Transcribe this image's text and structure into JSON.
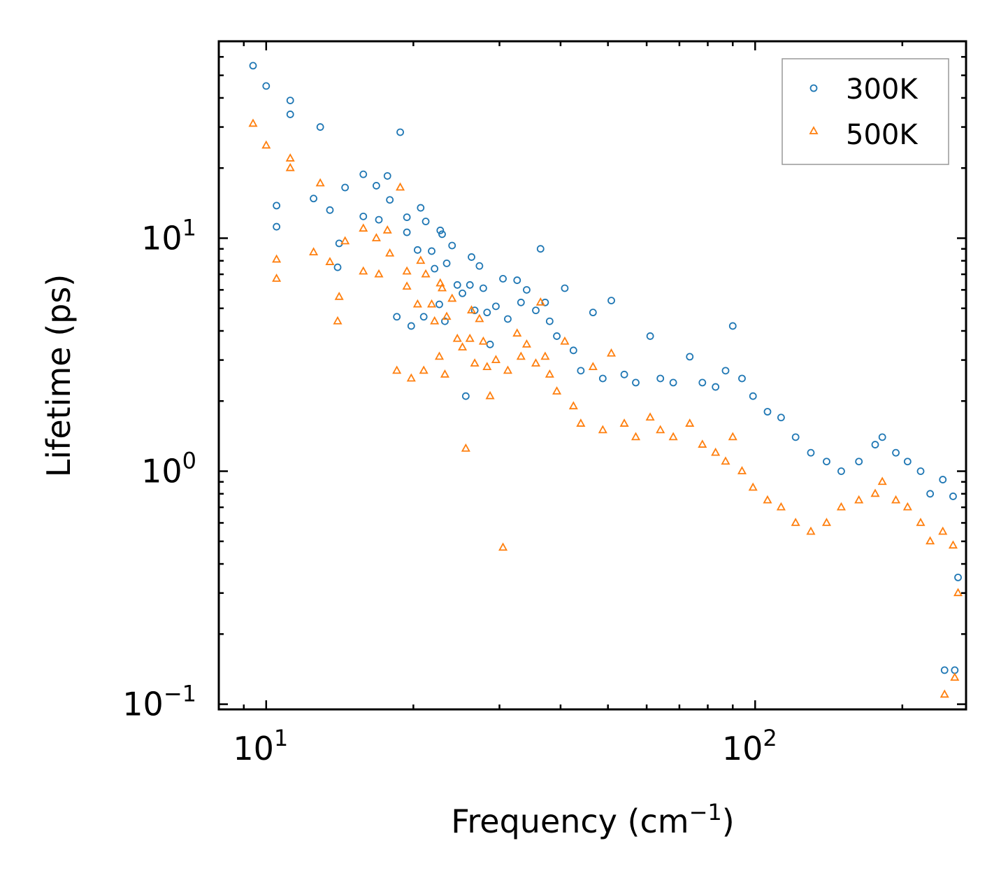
{
  "chart_data": {
    "type": "scatter",
    "title": "",
    "xlabel": "Frequency (cm",
    "xlabel_sup": "−1",
    "xlabel_end": ")",
    "ylabel": "Lifetime (ps)",
    "xscale": "log",
    "yscale": "log",
    "xlim": [
      8,
      270
    ],
    "ylim": [
      0.095,
      70
    ],
    "xticks": [
      {
        "base": "10",
        "exp": "1",
        "value": 10
      },
      {
        "base": "10",
        "exp": "2",
        "value": 100
      }
    ],
    "yticks": [
      {
        "base": "10",
        "exp": "−1",
        "value": 0.1
      },
      {
        "base": "10",
        "exp": "0",
        "value": 1
      },
      {
        "base": "10",
        "exp": "1",
        "value": 10
      }
    ],
    "legend_position": "top-right",
    "series": [
      {
        "name": "300K",
        "marker": "circle",
        "color": "#1f77b4",
        "points": [
          [
            9.4,
            55
          ],
          [
            10,
            45
          ],
          [
            11.2,
            39
          ],
          [
            11.2,
            34
          ],
          [
            12.9,
            30
          ],
          [
            10.5,
            13.8
          ],
          [
            10.5,
            11.2
          ],
          [
            12.5,
            14.8
          ],
          [
            13.5,
            13.2
          ],
          [
            14.1,
            9.5
          ],
          [
            14,
            7.5
          ],
          [
            14.5,
            16.5
          ],
          [
            15.8,
            18.8
          ],
          [
            15.8,
            12.4
          ],
          [
            16.8,
            16.8
          ],
          [
            17,
            12
          ],
          [
            17.7,
            18.5
          ],
          [
            17.9,
            14.6
          ],
          [
            18.8,
            28.5
          ],
          [
            18.5,
            4.6
          ],
          [
            19.4,
            12.3
          ],
          [
            19.4,
            10.6
          ],
          [
            19.8,
            4.2
          ],
          [
            20.7,
            13.5
          ],
          [
            20.4,
            8.9
          ],
          [
            21,
            4.6
          ],
          [
            21.2,
            11.8
          ],
          [
            21.8,
            8.8
          ],
          [
            22.1,
            7.4
          ],
          [
            22.7,
            10.8
          ],
          [
            22.9,
            10.4
          ],
          [
            22.6,
            5.2
          ],
          [
            23.2,
            4.4
          ],
          [
            23.4,
            7.8
          ],
          [
            24,
            9.3
          ],
          [
            24.6,
            6.3
          ],
          [
            25.2,
            5.8
          ],
          [
            25.6,
            2.1
          ],
          [
            26.1,
            6.3
          ],
          [
            26.3,
            8.3
          ],
          [
            26.7,
            4.9
          ],
          [
            27.3,
            7.6
          ],
          [
            27.8,
            6.1
          ],
          [
            28.3,
            4.8
          ],
          [
            28.7,
            3.5
          ],
          [
            29.5,
            5.1
          ],
          [
            30.5,
            6.7
          ],
          [
            31.2,
            4.5
          ],
          [
            32.6,
            6.6
          ],
          [
            33.2,
            5.3
          ],
          [
            34.1,
            6.0
          ],
          [
            35.6,
            4.9
          ],
          [
            36.4,
            9.0
          ],
          [
            37.2,
            5.3
          ],
          [
            38.0,
            4.4
          ],
          [
            39.3,
            3.8
          ],
          [
            40.8,
            6.1
          ],
          [
            42.5,
            3.3
          ],
          [
            44.0,
            2.7
          ],
          [
            46.6,
            4.8
          ],
          [
            48.8,
            2.5
          ],
          [
            50.8,
            5.4
          ],
          [
            54.0,
            2.6
          ],
          [
            57.0,
            2.4
          ],
          [
            61.0,
            3.8
          ],
          [
            64.0,
            2.5
          ],
          [
            68.0,
            2.4
          ],
          [
            73.5,
            3.1
          ],
          [
            78.0,
            2.4
          ],
          [
            83.0,
            2.3
          ],
          [
            87.0,
            2.7
          ],
          [
            90.0,
            4.2
          ],
          [
            94.0,
            2.5
          ],
          [
            99.0,
            2.1
          ],
          [
            106.0,
            1.8
          ],
          [
            113.0,
            1.7
          ],
          [
            121.0,
            1.4
          ],
          [
            130.0,
            1.2
          ],
          [
            140.0,
            1.1
          ],
          [
            150.0,
            1.0
          ],
          [
            163.0,
            1.1
          ],
          [
            176.0,
            1.3
          ],
          [
            182.0,
            1.4
          ],
          [
            194.0,
            1.2
          ],
          [
            205.0,
            1.1
          ],
          [
            218.0,
            1.0
          ],
          [
            228.0,
            0.8
          ],
          [
            242.0,
            0.92
          ],
          [
            244.0,
            0.14
          ],
          [
            254.0,
            0.78
          ],
          [
            256.0,
            0.14
          ],
          [
            260.0,
            0.35
          ]
        ]
      },
      {
        "name": "500K",
        "marker": "triangle",
        "color": "#ff7f0e",
        "points": [
          [
            9.4,
            31
          ],
          [
            10,
            25
          ],
          [
            11.2,
            22
          ],
          [
            11.2,
            20
          ],
          [
            12.9,
            17.2
          ],
          [
            10.5,
            8.1
          ],
          [
            10.5,
            6.7
          ],
          [
            12.5,
            8.7
          ],
          [
            13.5,
            7.9
          ],
          [
            14.1,
            5.6
          ],
          [
            14,
            4.4
          ],
          [
            14.5,
            9.7
          ],
          [
            15.8,
            11
          ],
          [
            15.8,
            7.2
          ],
          [
            16.8,
            10
          ],
          [
            17,
            7
          ],
          [
            17.7,
            10.8
          ],
          [
            17.9,
            8.6
          ],
          [
            18.8,
            16.5
          ],
          [
            18.5,
            2.7
          ],
          [
            19.4,
            7.2
          ],
          [
            19.4,
            6.2
          ],
          [
            19.8,
            2.5
          ],
          [
            20.7,
            8.0
          ],
          [
            20.4,
            5.2
          ],
          [
            21,
            2.7
          ],
          [
            21.2,
            7.0
          ],
          [
            21.8,
            5.2
          ],
          [
            22.1,
            4.4
          ],
          [
            22.7,
            6.4
          ],
          [
            22.9,
            6.1
          ],
          [
            22.6,
            3.1
          ],
          [
            23.2,
            2.6
          ],
          [
            23.4,
            4.6
          ],
          [
            24,
            5.5
          ],
          [
            24.6,
            3.7
          ],
          [
            25.2,
            3.4
          ],
          [
            25.6,
            1.25
          ],
          [
            26.1,
            3.7
          ],
          [
            26.3,
            4.9
          ],
          [
            26.7,
            2.9
          ],
          [
            27.3,
            4.5
          ],
          [
            27.8,
            3.6
          ],
          [
            28.3,
            2.8
          ],
          [
            28.7,
            2.1
          ],
          [
            29.5,
            3.0
          ],
          [
            30.5,
            0.47
          ],
          [
            31.2,
            2.7
          ],
          [
            32.6,
            3.9
          ],
          [
            33.2,
            3.1
          ],
          [
            34.1,
            3.5
          ],
          [
            35.6,
            2.9
          ],
          [
            36.4,
            5.3
          ],
          [
            37.2,
            3.1
          ],
          [
            38.0,
            2.6
          ],
          [
            39.3,
            2.2
          ],
          [
            40.8,
            3.6
          ],
          [
            42.5,
            1.9
          ],
          [
            44.0,
            1.6
          ],
          [
            46.6,
            2.8
          ],
          [
            48.8,
            1.5
          ],
          [
            50.8,
            3.2
          ],
          [
            54.0,
            1.6
          ],
          [
            57.0,
            1.4
          ],
          [
            61.0,
            1.7
          ],
          [
            64.0,
            1.5
          ],
          [
            68.0,
            1.4
          ],
          [
            73.5,
            1.6
          ],
          [
            78.0,
            1.3
          ],
          [
            83.0,
            1.2
          ],
          [
            87.0,
            1.1
          ],
          [
            90.0,
            1.4
          ],
          [
            94.0,
            1.0
          ],
          [
            99.0,
            0.85
          ],
          [
            106.0,
            0.75
          ],
          [
            113.0,
            0.7
          ],
          [
            121.0,
            0.6
          ],
          [
            130.0,
            0.55
          ],
          [
            140.0,
            0.6
          ],
          [
            150.0,
            0.7
          ],
          [
            163.0,
            0.75
          ],
          [
            176.0,
            0.8
          ],
          [
            182.0,
            0.9
          ],
          [
            194.0,
            0.75
          ],
          [
            205.0,
            0.7
          ],
          [
            218.0,
            0.6
          ],
          [
            228.0,
            0.5
          ],
          [
            242.0,
            0.55
          ],
          [
            244.0,
            0.11
          ],
          [
            254.0,
            0.48
          ],
          [
            256.0,
            0.13
          ],
          [
            260.0,
            0.3
          ]
        ]
      }
    ]
  }
}
